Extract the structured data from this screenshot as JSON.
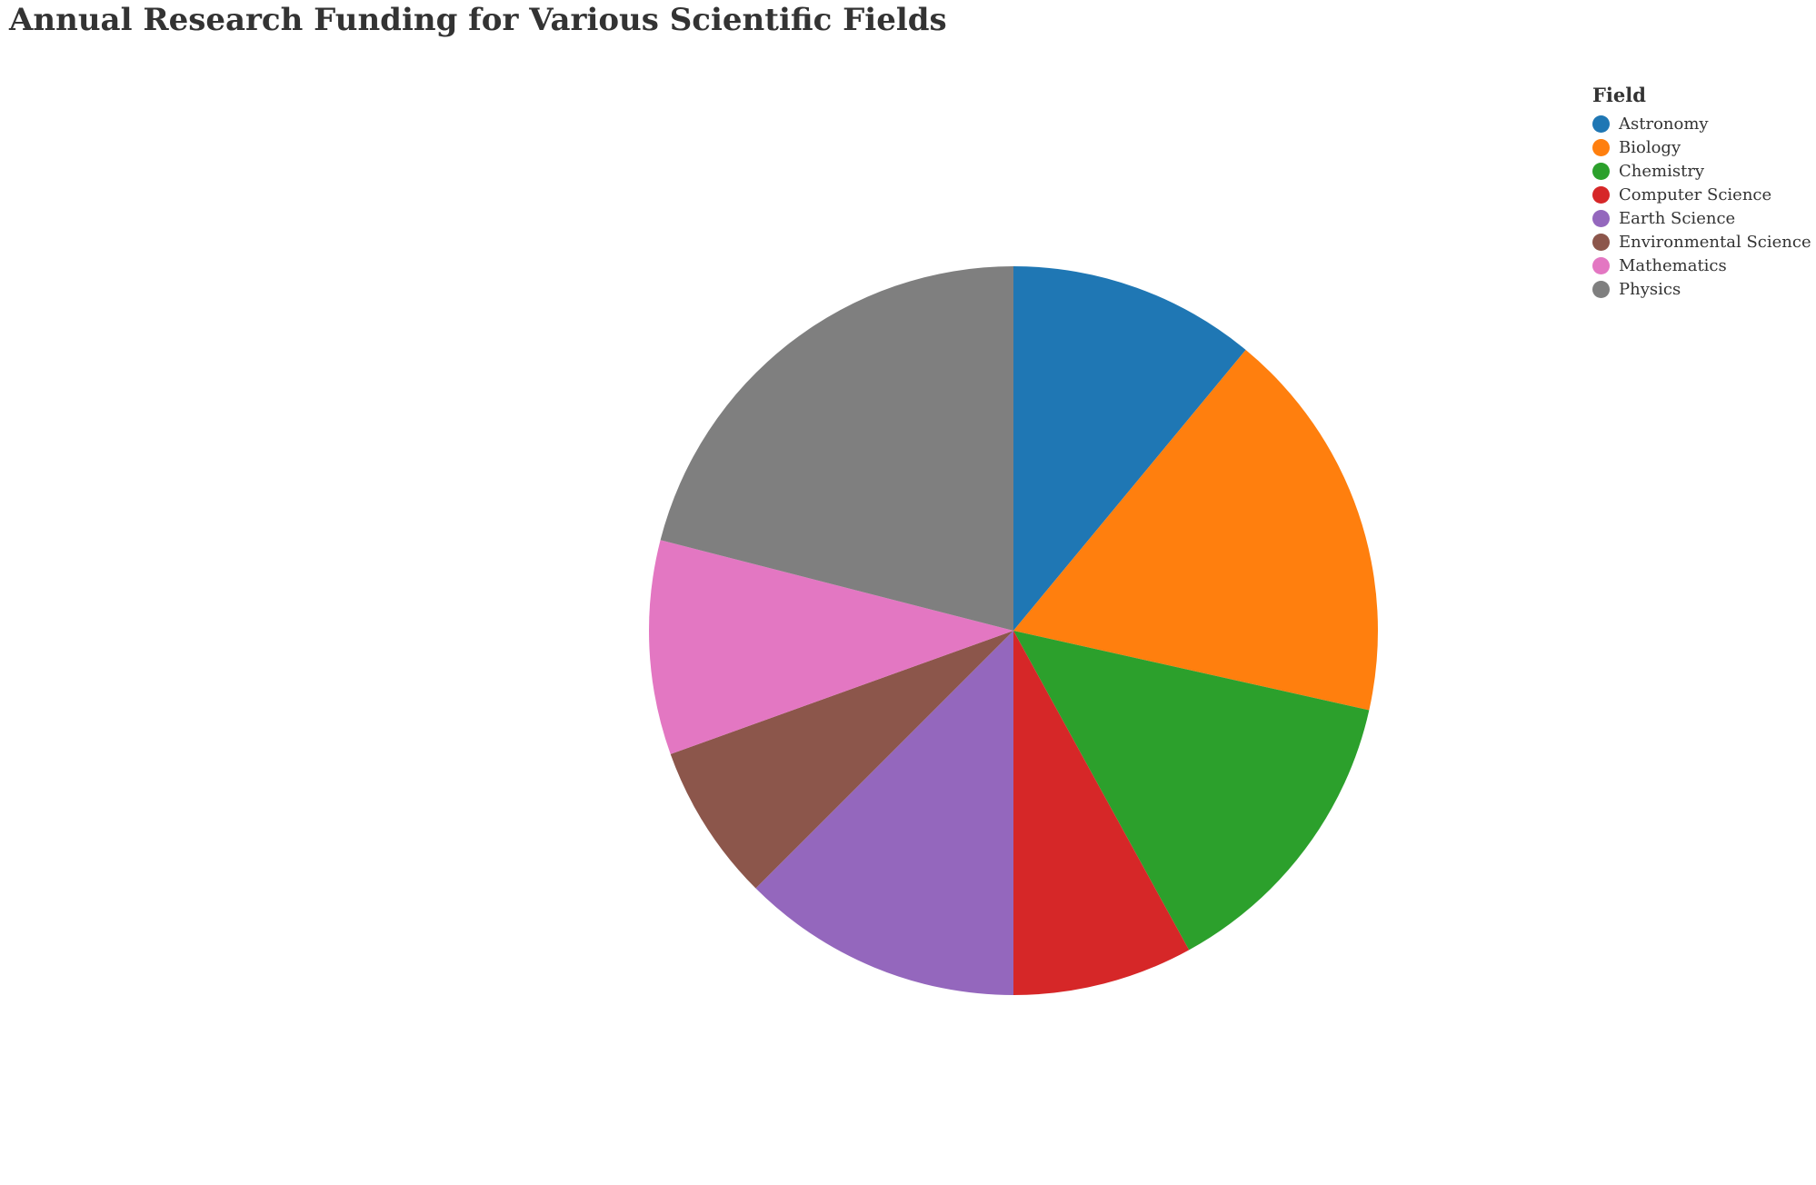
{
  "chart_data": {
    "type": "pie",
    "title": "Annual Research Funding for Various Scientific Fields",
    "legend_title": "Field",
    "legend_position": "top-right",
    "categories": [
      "Astronomy",
      "Biology",
      "Chemistry",
      "Computer Science",
      "Earth Science",
      "Environmental Science",
      "Mathematics",
      "Physics"
    ],
    "values": [
      11,
      17.5,
      13.5,
      8,
      12.5,
      7,
      9.5,
      21
    ],
    "colors": [
      "#1f77b4",
      "#ff7f0e",
      "#2ca02c",
      "#d62728",
      "#9467bd",
      "#8c564b",
      "#e377c2",
      "#7f7f7f"
    ]
  }
}
